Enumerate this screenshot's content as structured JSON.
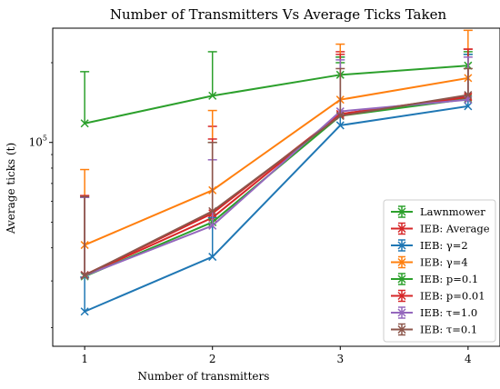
{
  "chart_data": {
    "type": "line",
    "title": "Number of Transmitters Vs Average Ticks Taken",
    "xlabel": "Number of transmitters",
    "ylabel": "Average ticks (t)",
    "x": [
      1,
      2,
      3,
      4
    ],
    "x_ticks": [
      "1",
      "2",
      "3",
      "4"
    ],
    "xlim": [
      0.75,
      4.25
    ],
    "ylim": [
      17000,
      270000
    ],
    "y_scale": "log",
    "y_tick_labels": [
      {
        "value": 100000,
        "label": "10^5"
      }
    ],
    "grid": false,
    "legend": "bottom-right",
    "series": [
      {
        "name": "Lawnmower",
        "color": "#2ca02c",
        "marker": "x",
        "values": [
          118000,
          150000,
          180000,
          195000
        ],
        "err_upper": [
          185000,
          220000,
          200000,
          215000
        ]
      },
      {
        "name": "IEB: Average",
        "color": "#d62728",
        "marker": "x",
        "values": [
          31500,
          52000,
          128000,
          148000
        ],
        "err_upper": [
          63000,
          115000,
          220000,
          225000
        ]
      },
      {
        "name": "IEB: γ=2",
        "color": "#1f77b4",
        "marker": "x",
        "values": [
          23000,
          37000,
          116000,
          137000
        ],
        "err_upper": [
          31000,
          52000,
          210000,
          215000
        ]
      },
      {
        "name": "IEB: γ=4",
        "color": "#ff7f0e",
        "marker": "x",
        "values": [
          41000,
          66000,
          145000,
          175000
        ],
        "err_upper": [
          79000,
          132000,
          235000,
          265000
        ]
      },
      {
        "name": "IEB: p=0.1",
        "color": "#2ca02c",
        "marker": "x",
        "values": [
          31200,
          50000,
          126000,
          146000
        ],
        "err_upper": [
          62000,
          100000,
          210000,
          220000
        ]
      },
      {
        "name": "IEB: p=0.01",
        "color": "#d62728",
        "marker": "x",
        "values": [
          31600,
          54000,
          128000,
          149000
        ],
        "err_upper": [
          63000,
          103000,
          215000,
          225000
        ]
      },
      {
        "name": "IEB: τ=1.0",
        "color": "#9467bd",
        "marker": "x",
        "values": [
          31400,
          48500,
          131000,
          145000
        ],
        "err_upper": [
          62000,
          86000,
          205000,
          210000
        ]
      },
      {
        "name": "IEB: τ=0.1",
        "color": "#8c564b",
        "marker": "x",
        "values": [
          31500,
          55000,
          126000,
          151000
        ],
        "err_upper": [
          62500,
          100000,
          190000,
          190000
        ]
      }
    ]
  }
}
